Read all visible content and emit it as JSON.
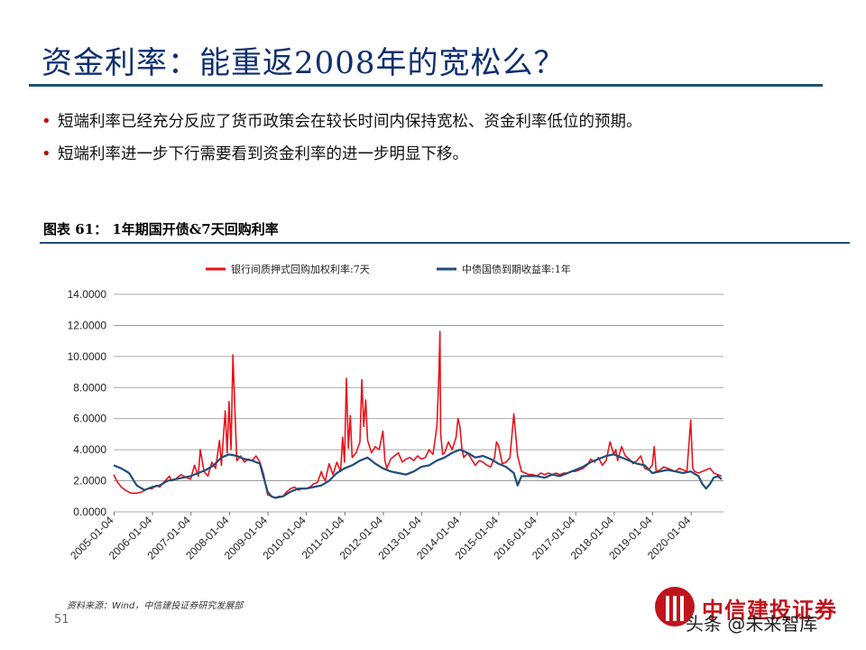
{
  "slide": {
    "title": "资金利率：能重返2008年的宽松么？",
    "bullets": [
      "短端利率已经充分反应了货币政策会在较长时间内保持宽松、资金利率低位的预期。",
      "短端利率进一步下行需要看到资金利率的进一步明显下移。"
    ],
    "figure_title": "图表 61：  1年期国开债&7天回购利率",
    "source": "资料来源：Wind，中信建投证券研究发展部",
    "page_number": "51",
    "logo_text": "中信建投证券",
    "watermark": "头条 @未来智库"
  },
  "colors": {
    "repo": "#e8141b",
    "bond": "#1f4e79",
    "title": "#0f2f6f",
    "accent": "#c00000"
  },
  "chart_data": {
    "type": "line",
    "title": "",
    "xlabel": "",
    "ylabel": "",
    "ylim": [
      0,
      14
    ],
    "yticks": [
      "0.0000",
      "2.0000",
      "4.0000",
      "6.0000",
      "8.0000",
      "10.0000",
      "12.0000",
      "14.0000"
    ],
    "xticks": [
      "2005-01-04",
      "2006-01-04",
      "2007-01-04",
      "2008-01-04",
      "2009-01-04",
      "2010-01-04",
      "2011-01-04",
      "2012-01-04",
      "2013-01-04",
      "2014-01-04",
      "2015-01-04",
      "2016-01-04",
      "2017-01-04",
      "2018-01-04",
      "2019-01-04",
      "2020-01-04"
    ],
    "legend_position": "top",
    "grid": true,
    "series": [
      {
        "name": "银行间质押式回购加权利率:7天",
        "color": "#e8141b",
        "x": [
          2005.0,
          2005.1,
          2005.2,
          2005.3,
          2005.45,
          2005.6,
          2005.75,
          2005.9,
          2006.0,
          2006.1,
          2006.2,
          2006.3,
          2006.45,
          2006.5,
          2006.6,
          2006.75,
          2006.9,
          2007.0,
          2007.1,
          2007.2,
          2007.25,
          2007.35,
          2007.45,
          2007.55,
          2007.65,
          2007.75,
          2007.8,
          2007.9,
          2007.95,
          2008.0,
          2008.05,
          2008.1,
          2008.2,
          2008.3,
          2008.4,
          2008.5,
          2008.6,
          2008.7,
          2008.8,
          2008.9,
          2009.0,
          2009.1,
          2009.2,
          2009.3,
          2009.4,
          2009.5,
          2009.6,
          2009.7,
          2009.8,
          2009.9,
          2010.0,
          2010.1,
          2010.2,
          2010.3,
          2010.4,
          2010.45,
          2010.5,
          2010.6,
          2010.7,
          2010.8,
          2010.9,
          2010.95,
          2011.0,
          2011.05,
          2011.1,
          2011.15,
          2011.2,
          2011.3,
          2011.4,
          2011.45,
          2011.5,
          2011.55,
          2011.6,
          2011.7,
          2011.8,
          2011.9,
          2012.0,
          2012.05,
          2012.1,
          2012.2,
          2012.3,
          2012.4,
          2012.5,
          2012.6,
          2012.7,
          2012.8,
          2012.9,
          2013.0,
          2013.1,
          2013.2,
          2013.3,
          2013.4,
          2013.45,
          2013.48,
          2013.5,
          2013.55,
          2013.6,
          2013.7,
          2013.8,
          2013.9,
          2013.95,
          2014.0,
          2014.05,
          2014.1,
          2014.2,
          2014.3,
          2014.4,
          2014.5,
          2014.6,
          2014.7,
          2014.8,
          2014.9,
          2014.95,
          2015.0,
          2015.1,
          2015.2,
          2015.3,
          2015.4,
          2015.5,
          2015.6,
          2015.7,
          2015.8,
          2015.9,
          2016.0,
          2016.1,
          2016.2,
          2016.3,
          2016.4,
          2016.5,
          2016.6,
          2016.7,
          2016.8,
          2016.9,
          2017.0,
          2017.1,
          2017.2,
          2017.3,
          2017.4,
          2017.5,
          2017.6,
          2017.7,
          2017.8,
          2017.9,
          2018.0,
          2018.05,
          2018.1,
          2018.2,
          2018.3,
          2018.4,
          2018.5,
          2018.6,
          2018.7,
          2018.8,
          2018.9,
          2019.0,
          2019.05,
          2019.1,
          2019.2,
          2019.3,
          2019.4,
          2019.5,
          2019.6,
          2019.7,
          2019.8,
          2019.9,
          2020.0,
          2020.05,
          2020.1,
          2020.2,
          2020.3,
          2020.4,
          2020.5,
          2020.6,
          2020.7,
          2020.8
        ],
        "y": [
          2.4,
          1.9,
          1.6,
          1.4,
          1.2,
          1.2,
          1.3,
          1.5,
          1.5,
          1.7,
          1.6,
          1.9,
          2.3,
          2.0,
          2.1,
          2.4,
          2.2,
          2.1,
          3.0,
          2.3,
          4.0,
          2.6,
          2.3,
          3.2,
          2.8,
          4.6,
          3.0,
          6.5,
          3.8,
          7.1,
          4.0,
          10.1,
          3.3,
          3.6,
          3.2,
          3.4,
          3.3,
          3.6,
          3.2,
          2.4,
          1.1,
          1.0,
          0.9,
          1.0,
          1.0,
          1.3,
          1.5,
          1.6,
          1.4,
          1.5,
          1.5,
          1.6,
          1.8,
          1.9,
          2.6,
          2.2,
          2.0,
          3.1,
          2.4,
          3.2,
          2.6,
          4.8,
          3.2,
          8.6,
          4.1,
          6.2,
          3.5,
          3.8,
          4.5,
          8.5,
          5.5,
          7.2,
          4.6,
          3.8,
          4.2,
          4.0,
          5.2,
          3.3,
          2.8,
          3.4,
          3.6,
          3.8,
          3.2,
          3.4,
          3.5,
          3.3,
          3.6,
          3.4,
          3.5,
          4.0,
          3.7,
          5.5,
          8.6,
          11.6,
          5.0,
          3.7,
          3.8,
          4.5,
          4.0,
          4.8,
          6.0,
          5.5,
          4.1,
          3.5,
          3.8,
          3.4,
          3.0,
          3.3,
          3.2,
          3.0,
          2.9,
          3.5,
          4.5,
          4.3,
          3.1,
          3.2,
          3.5,
          6.3,
          3.6,
          2.6,
          2.5,
          2.4,
          2.4,
          2.3,
          2.5,
          2.4,
          2.5,
          2.4,
          2.5,
          2.4,
          2.5,
          2.5,
          2.6,
          2.6,
          2.7,
          2.8,
          3.0,
          3.4,
          3.2,
          3.5,
          3.0,
          3.3,
          4.5,
          3.7,
          4.0,
          3.3,
          4.2,
          3.6,
          3.4,
          3.1,
          3.3,
          3.6,
          2.8,
          2.7,
          3.0,
          4.2,
          2.6,
          2.7,
          2.9,
          2.8,
          2.7,
          2.6,
          2.8,
          2.7,
          2.6,
          5.9,
          2.8,
          2.6,
          2.5,
          2.6,
          2.7,
          2.8,
          2.5,
          2.4,
          2.3
        ]
      },
      {
        "name": "中债国债到期收益率:1年",
        "color": "#1f4e79",
        "x": [
          2005.0,
          2005.2,
          2005.4,
          2005.6,
          2005.8,
          2006.0,
          2006.2,
          2006.4,
          2006.6,
          2006.8,
          2007.0,
          2007.2,
          2007.4,
          2007.6,
          2007.8,
          2008.0,
          2008.2,
          2008.4,
          2008.6,
          2008.8,
          2008.9,
          2009.0,
          2009.1,
          2009.2,
          2009.4,
          2009.6,
          2009.8,
          2010.0,
          2010.2,
          2010.4,
          2010.6,
          2010.8,
          2011.0,
          2011.2,
          2011.4,
          2011.6,
          2011.8,
          2012.0,
          2012.2,
          2012.4,
          2012.6,
          2012.8,
          2013.0,
          2013.2,
          2013.4,
          2013.6,
          2013.8,
          2014.0,
          2014.2,
          2014.4,
          2014.6,
          2014.8,
          2015.0,
          2015.2,
          2015.4,
          2015.5,
          2015.6,
          2015.8,
          2016.0,
          2016.2,
          2016.4,
          2016.6,
          2016.8,
          2017.0,
          2017.2,
          2017.4,
          2017.6,
          2017.8,
          2018.0,
          2018.2,
          2018.4,
          2018.6,
          2018.8,
          2019.0,
          2019.2,
          2019.4,
          2019.6,
          2019.8,
          2020.0,
          2020.2,
          2020.3,
          2020.4,
          2020.5,
          2020.6,
          2020.7,
          2020.8
        ],
        "y": [
          3.0,
          2.8,
          2.5,
          1.7,
          1.4,
          1.6,
          1.7,
          2.0,
          2.1,
          2.2,
          2.3,
          2.5,
          2.7,
          3.0,
          3.5,
          3.7,
          3.6,
          3.4,
          3.3,
          3.1,
          2.2,
          1.3,
          1.0,
          0.9,
          1.0,
          1.3,
          1.5,
          1.5,
          1.6,
          1.7,
          2.0,
          2.5,
          2.8,
          3.0,
          3.3,
          3.5,
          3.1,
          2.8,
          2.6,
          2.5,
          2.4,
          2.6,
          2.9,
          3.0,
          3.3,
          3.5,
          3.8,
          4.0,
          3.8,
          3.5,
          3.6,
          3.4,
          3.1,
          2.9,
          2.5,
          1.7,
          2.3,
          2.3,
          2.3,
          2.2,
          2.4,
          2.3,
          2.5,
          2.7,
          2.9,
          3.2,
          3.4,
          3.6,
          3.7,
          3.5,
          3.3,
          3.1,
          3.0,
          2.5,
          2.6,
          2.7,
          2.6,
          2.5,
          2.6,
          2.3,
          1.8,
          1.5,
          1.8,
          2.2,
          2.3,
          2.1
        ]
      }
    ]
  }
}
